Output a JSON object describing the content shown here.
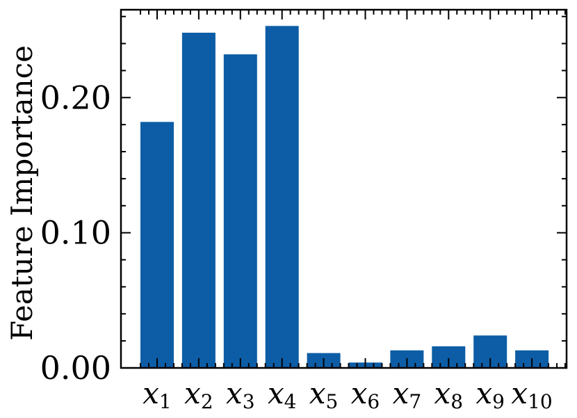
{
  "chart_data": {
    "type": "bar",
    "categories": [
      {
        "base": "x",
        "sub": "1"
      },
      {
        "base": "x",
        "sub": "2"
      },
      {
        "base": "x",
        "sub": "3"
      },
      {
        "base": "x",
        "sub": "4"
      },
      {
        "base": "x",
        "sub": "5"
      },
      {
        "base": "x",
        "sub": "6"
      },
      {
        "base": "x",
        "sub": "7"
      },
      {
        "base": "x",
        "sub": "8"
      },
      {
        "base": "x",
        "sub": "9"
      },
      {
        "base": "x",
        "sub": "10"
      }
    ],
    "values": [
      0.182,
      0.248,
      0.232,
      0.253,
      0.011,
      0.004,
      0.013,
      0.016,
      0.024,
      0.013
    ],
    "ylabel": "Feature Importance",
    "ylim": [
      0,
      0.265
    ],
    "yticks": [
      0.0,
      0.1,
      0.2
    ],
    "ytick_labels": [
      "0.00",
      "0.10",
      "0.20"
    ],
    "ytick_minor_step": 0.02,
    "grid": false,
    "bar_color": "#0c5da5"
  }
}
